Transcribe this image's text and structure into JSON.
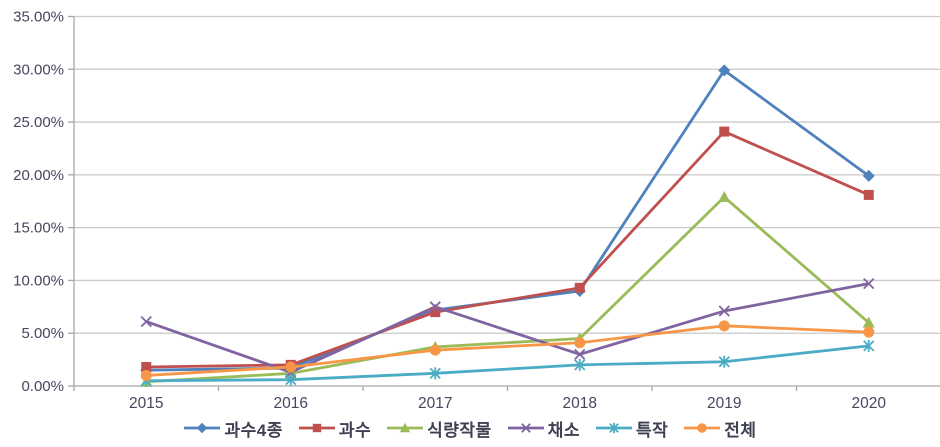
{
  "chart_data": {
    "type": "line",
    "title": "",
    "categories": [
      "2015",
      "2016",
      "2017",
      "2018",
      "2019",
      "2020"
    ],
    "series": [
      {
        "name": "과수4종",
        "color": "#4F81BD",
        "marker": "diamond",
        "values": [
          1.5,
          1.7,
          7.2,
          9.0,
          29.9,
          19.9
        ]
      },
      {
        "name": "과수",
        "color": "#C0504D",
        "marker": "square",
        "values": [
          1.8,
          2.0,
          7.0,
          9.3,
          24.1,
          18.1
        ]
      },
      {
        "name": "식량작물",
        "color": "#9BBB59",
        "marker": "triangle",
        "values": [
          0.4,
          1.2,
          3.7,
          4.5,
          17.9,
          6.0
        ]
      },
      {
        "name": "채소",
        "color": "#8064A2",
        "marker": "x",
        "values": [
          6.1,
          1.3,
          7.5,
          3.0,
          7.1,
          9.7
        ]
      },
      {
        "name": "특작",
        "color": "#4BACC6",
        "marker": "asterisk",
        "values": [
          0.5,
          0.6,
          1.2,
          2.0,
          2.3,
          3.8
        ]
      },
      {
        "name": "전체",
        "color": "#F79646",
        "marker": "circle",
        "values": [
          1.0,
          1.8,
          3.4,
          4.1,
          5.7,
          5.1
        ]
      }
    ],
    "y_axis": {
      "min": 0,
      "max": 35,
      "step": 5,
      "labels": [
        "0.00%",
        "5.00%",
        "10.00%",
        "15.00%",
        "20.00%",
        "25.00%",
        "30.00%",
        "35.00%"
      ]
    },
    "x_axis": {
      "labels": [
        "2015",
        "2016",
        "2017",
        "2018",
        "2019",
        "2020"
      ]
    },
    "legend_position": "bottom",
    "grid": true,
    "colors": {
      "gridline": "#C9C9C9",
      "axis_line": "#A6A6A6",
      "tick_label": "#45475F",
      "legend_text": "#3F4153",
      "background": "#FFFFFF"
    }
  }
}
